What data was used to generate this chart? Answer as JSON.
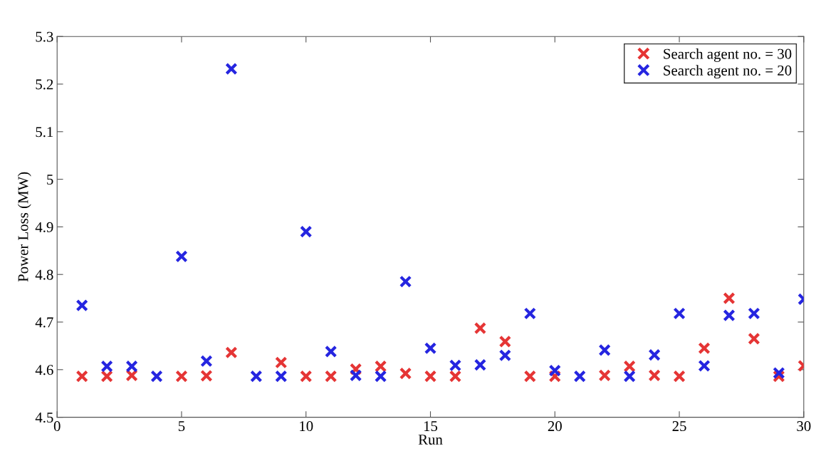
{
  "chart_data": {
    "type": "scatter",
    "xlabel": "Run",
    "ylabel": "Power Loss (MW)",
    "x": [
      1,
      2,
      3,
      4,
      5,
      6,
      7,
      8,
      9,
      10,
      11,
      12,
      13,
      14,
      15,
      16,
      17,
      18,
      19,
      20,
      21,
      22,
      23,
      24,
      25,
      26,
      27,
      28,
      29,
      30
    ],
    "series": [
      {
        "name": "Search agent no. = 30",
        "color": "#e53535",
        "values": [
          4.586,
          4.586,
          4.588,
          null,
          4.586,
          4.587,
          4.636,
          null,
          4.615,
          4.586,
          4.586,
          4.601,
          4.607,
          4.592,
          4.586,
          4.586,
          4.687,
          4.659,
          4.586,
          4.586,
          null,
          4.588,
          4.607,
          4.588,
          4.586,
          4.645,
          4.75,
          4.665,
          4.586,
          4.608
        ]
      },
      {
        "name": "Search agent no. = 20",
        "color": "#2525e0",
        "values": [
          4.735,
          4.607,
          4.607,
          4.586,
          4.838,
          4.618,
          5.232,
          4.586,
          4.586,
          4.89,
          4.638,
          4.588,
          4.586,
          4.785,
          4.645,
          4.609,
          4.61,
          4.63,
          4.718,
          4.598,
          4.586,
          4.641,
          4.586,
          4.631,
          4.718,
          4.608,
          4.714,
          4.718,
          4.593,
          4.748
        ]
      }
    ],
    "marker": "cross",
    "xlim": [
      0,
      30
    ],
    "xticks": [
      0,
      5,
      10,
      15,
      20,
      25,
      30
    ],
    "ylim": [
      4.5,
      5.3
    ],
    "yticks": [
      4.5,
      4.6,
      4.7,
      4.8,
      4.9,
      {
        "value": 5,
        "label": "5"
      },
      5.1,
      5.2,
      5.3
    ],
    "grid": false,
    "legend": "top right"
  }
}
